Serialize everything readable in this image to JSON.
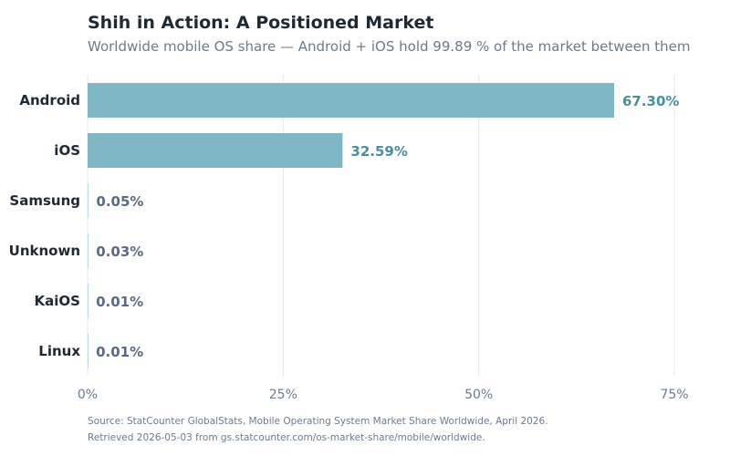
{
  "chart_data": {
    "type": "bar",
    "orientation": "horizontal",
    "title": "Shih in Action: A Positioned Market",
    "subtitle": "Worldwide mobile OS share — Android + iOS hold 99.89 % of the market between them",
    "categories": [
      "Android",
      "iOS",
      "Samsung",
      "Unknown",
      "KaiOS",
      "Linux"
    ],
    "values": [
      67.3,
      32.59,
      0.05,
      0.03,
      0.01,
      0.01
    ],
    "value_labels": [
      "67.30%",
      "32.59%",
      "0.05%",
      "0.03%",
      "0.01%",
      "0.01%"
    ],
    "xlim": [
      0,
      75
    ],
    "x_ticks": [
      0,
      25,
      50,
      75
    ],
    "x_tick_labels": [
      "0%",
      "25%",
      "50%",
      "75%"
    ],
    "xlabel": "",
    "ylabel": "",
    "grid": "vertical",
    "legend": "none",
    "colors": {
      "bar": "#7fb8c4",
      "value_label_major": "#4a8f9b",
      "value_label_minor": "#5a6b80",
      "grid": "#e3e7eb",
      "text": "#1f2933",
      "muted": "#6b7b8c"
    }
  },
  "source_lines": [
    "Source: StatCounter GlobalStats, Mobile Operating System Market Share Worldwide, April 2026.",
    "Retrieved 2026-05-03 from gs.statcounter.com/os-market-share/mobile/worldwide."
  ]
}
